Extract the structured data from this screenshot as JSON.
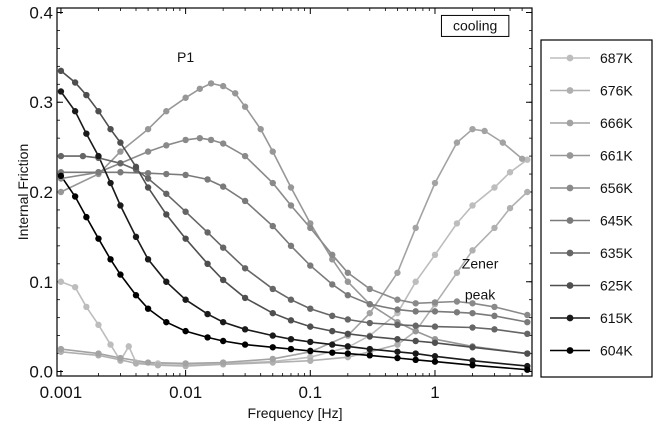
{
  "chart_data": {
    "type": "line",
    "title": "",
    "xlabel": "Frequency [Hz]",
    "ylabel": "Internal Friction",
    "x_scale": "log",
    "xlim": [
      0.00093,
      6.0
    ],
    "ylim": [
      -0.005,
      0.405
    ],
    "x_ticks": [
      {
        "value": 0.001,
        "label": "0.001"
      },
      {
        "value": 0.01,
        "label": "0.01"
      },
      {
        "value": 0.1,
        "label": "0.1"
      },
      {
        "value": 1,
        "label": "1"
      }
    ],
    "y_ticks": [
      {
        "value": 0.0,
        "label": "0.0"
      },
      {
        "value": 0.1,
        "label": "0.1"
      },
      {
        "value": 0.2,
        "label": "0.2"
      },
      {
        "value": 0.3,
        "label": "0.3"
      },
      {
        "value": 0.4,
        "label": "0.4"
      }
    ],
    "grid": false,
    "legend_position": "right-outside",
    "annotations": [
      {
        "text": "P1",
        "x": 0.01,
        "y": 0.345
      },
      {
        "text": "cooling",
        "x": 2.1,
        "y": 0.38,
        "boxed": true
      },
      {
        "text": "Zener",
        "x": 2.3,
        "y": 0.115
      },
      {
        "text": "peak",
        "x": 2.3,
        "y": 0.08
      }
    ],
    "series": [
      {
        "name": "687K",
        "color": "#bdbdbd",
        "points": [
          [
            0.001,
            0.1
          ],
          [
            0.0013,
            0.094
          ],
          [
            0.0016,
            0.072
          ],
          [
            0.002,
            0.052
          ],
          [
            0.0025,
            0.03
          ],
          [
            0.003,
            0.012
          ],
          [
            0.0035,
            0.028
          ],
          [
            0.004,
            0.01
          ],
          [
            0.006,
            0.009
          ],
          [
            0.01,
            0.008
          ],
          [
            0.02,
            0.009
          ],
          [
            0.05,
            0.011
          ],
          [
            0.1,
            0.016
          ],
          [
            0.2,
            0.027
          ],
          [
            0.3,
            0.04
          ],
          [
            0.5,
            0.065
          ],
          [
            0.7,
            0.1
          ],
          [
            1.0,
            0.13
          ],
          [
            1.5,
            0.165
          ],
          [
            2.0,
            0.185
          ],
          [
            3.0,
            0.205
          ],
          [
            4.0,
            0.222
          ],
          [
            5.5,
            0.236
          ]
        ]
      },
      {
        "name": "676K",
        "color": "#b0b0b0",
        "points": [
          [
            0.001,
            0.022
          ],
          [
            0.002,
            0.018
          ],
          [
            0.003,
            0.013
          ],
          [
            0.004,
            0.009
          ],
          [
            0.006,
            0.007
          ],
          [
            0.01,
            0.006
          ],
          [
            0.02,
            0.008
          ],
          [
            0.05,
            0.01
          ],
          [
            0.1,
            0.012
          ],
          [
            0.2,
            0.016
          ],
          [
            0.3,
            0.022
          ],
          [
            0.5,
            0.03
          ],
          [
            0.7,
            0.045
          ],
          [
            1.0,
            0.075
          ],
          [
            1.5,
            0.11
          ],
          [
            2.0,
            0.135
          ],
          [
            3.0,
            0.16
          ],
          [
            4.0,
            0.182
          ],
          [
            5.5,
            0.2
          ]
        ]
      },
      {
        "name": "666K",
        "color": "#a3a3a3",
        "points": [
          [
            0.001,
            0.025
          ],
          [
            0.002,
            0.02
          ],
          [
            0.003,
            0.015
          ],
          [
            0.005,
            0.01
          ],
          [
            0.01,
            0.009
          ],
          [
            0.02,
            0.01
          ],
          [
            0.05,
            0.014
          ],
          [
            0.1,
            0.022
          ],
          [
            0.2,
            0.04
          ],
          [
            0.3,
            0.065
          ],
          [
            0.5,
            0.11
          ],
          [
            0.7,
            0.16
          ],
          [
            1.0,
            0.21
          ],
          [
            1.5,
            0.255
          ],
          [
            2.0,
            0.27
          ],
          [
            2.5,
            0.268
          ],
          [
            3.5,
            0.255
          ],
          [
            5.0,
            0.237
          ]
        ]
      },
      {
        "name": "661K",
        "color": "#979797",
        "points": [
          [
            0.001,
            0.2
          ],
          [
            0.002,
            0.22
          ],
          [
            0.003,
            0.245
          ],
          [
            0.005,
            0.27
          ],
          [
            0.007,
            0.29
          ],
          [
            0.01,
            0.305
          ],
          [
            0.013,
            0.315
          ],
          [
            0.016,
            0.321
          ],
          [
            0.02,
            0.318
          ],
          [
            0.025,
            0.31
          ],
          [
            0.03,
            0.295
          ],
          [
            0.04,
            0.27
          ],
          [
            0.05,
            0.245
          ],
          [
            0.07,
            0.205
          ],
          [
            0.1,
            0.165
          ],
          [
            0.15,
            0.125
          ],
          [
            0.2,
            0.1
          ],
          [
            0.3,
            0.075
          ],
          [
            0.5,
            0.055
          ],
          [
            0.7,
            0.045
          ],
          [
            1.0,
            0.036
          ],
          [
            2.0,
            0.028
          ],
          [
            5.5,
            0.02
          ]
        ]
      },
      {
        "name": "656K",
        "color": "#8a8a8a",
        "points": [
          [
            0.001,
            0.215
          ],
          [
            0.002,
            0.222
          ],
          [
            0.003,
            0.232
          ],
          [
            0.005,
            0.245
          ],
          [
            0.007,
            0.252
          ],
          [
            0.01,
            0.258
          ],
          [
            0.013,
            0.26
          ],
          [
            0.016,
            0.258
          ],
          [
            0.02,
            0.254
          ],
          [
            0.03,
            0.24
          ],
          [
            0.05,
            0.21
          ],
          [
            0.07,
            0.185
          ],
          [
            0.1,
            0.16
          ],
          [
            0.15,
            0.13
          ],
          [
            0.2,
            0.11
          ],
          [
            0.3,
            0.092
          ],
          [
            0.5,
            0.08
          ],
          [
            0.7,
            0.076
          ],
          [
            1.0,
            0.077
          ],
          [
            1.5,
            0.078
          ],
          [
            2.0,
            0.076
          ],
          [
            3.0,
            0.072
          ],
          [
            5.5,
            0.063
          ]
        ]
      },
      {
        "name": "645K",
        "color": "#7a7a7a",
        "points": [
          [
            0.001,
            0.222
          ],
          [
            0.002,
            0.222
          ],
          [
            0.003,
            0.222
          ],
          [
            0.005,
            0.221
          ],
          [
            0.007,
            0.22
          ],
          [
            0.01,
            0.219
          ],
          [
            0.015,
            0.214
          ],
          [
            0.02,
            0.206
          ],
          [
            0.03,
            0.19
          ],
          [
            0.05,
            0.162
          ],
          [
            0.07,
            0.14
          ],
          [
            0.1,
            0.118
          ],
          [
            0.15,
            0.097
          ],
          [
            0.2,
            0.085
          ],
          [
            0.3,
            0.075
          ],
          [
            0.5,
            0.069
          ],
          [
            0.7,
            0.067
          ],
          [
            1.0,
            0.067
          ],
          [
            1.5,
            0.066
          ],
          [
            2.0,
            0.065
          ],
          [
            3.0,
            0.062
          ],
          [
            5.5,
            0.055
          ]
        ]
      },
      {
        "name": "635K",
        "color": "#666666",
        "points": [
          [
            0.001,
            0.24
          ],
          [
            0.0015,
            0.24
          ],
          [
            0.002,
            0.238
          ],
          [
            0.003,
            0.232
          ],
          [
            0.004,
            0.225
          ],
          [
            0.005,
            0.215
          ],
          [
            0.007,
            0.198
          ],
          [
            0.01,
            0.178
          ],
          [
            0.015,
            0.155
          ],
          [
            0.02,
            0.138
          ],
          [
            0.03,
            0.115
          ],
          [
            0.05,
            0.092
          ],
          [
            0.07,
            0.08
          ],
          [
            0.1,
            0.07
          ],
          [
            0.15,
            0.062
          ],
          [
            0.2,
            0.058
          ],
          [
            0.3,
            0.054
          ],
          [
            0.5,
            0.052
          ],
          [
            0.7,
            0.051
          ],
          [
            1.0,
            0.05
          ],
          [
            2.0,
            0.049
          ],
          [
            3.0,
            0.047
          ],
          [
            5.5,
            0.042
          ]
        ]
      },
      {
        "name": "625K",
        "color": "#4f4f4f",
        "points": [
          [
            0.001,
            0.335
          ],
          [
            0.0013,
            0.322
          ],
          [
            0.0016,
            0.308
          ],
          [
            0.002,
            0.29
          ],
          [
            0.0025,
            0.27
          ],
          [
            0.003,
            0.255
          ],
          [
            0.004,
            0.228
          ],
          [
            0.005,
            0.205
          ],
          [
            0.007,
            0.175
          ],
          [
            0.01,
            0.148
          ],
          [
            0.015,
            0.12
          ],
          [
            0.02,
            0.102
          ],
          [
            0.03,
            0.082
          ],
          [
            0.05,
            0.065
          ],
          [
            0.07,
            0.057
          ],
          [
            0.1,
            0.05
          ],
          [
            0.15,
            0.045
          ],
          [
            0.2,
            0.042
          ],
          [
            0.3,
            0.039
          ],
          [
            0.5,
            0.036
          ],
          [
            0.7,
            0.034
          ],
          [
            1.0,
            0.032
          ],
          [
            2.0,
            0.027
          ],
          [
            5.5,
            0.02
          ]
        ]
      },
      {
        "name": "615K",
        "color": "#1a1a1a",
        "points": [
          [
            0.001,
            0.312
          ],
          [
            0.0013,
            0.29
          ],
          [
            0.0016,
            0.265
          ],
          [
            0.002,
            0.24
          ],
          [
            0.0025,
            0.21
          ],
          [
            0.003,
            0.185
          ],
          [
            0.004,
            0.15
          ],
          [
            0.005,
            0.125
          ],
          [
            0.007,
            0.1
          ],
          [
            0.01,
            0.08
          ],
          [
            0.015,
            0.064
          ],
          [
            0.02,
            0.055
          ],
          [
            0.03,
            0.047
          ],
          [
            0.05,
            0.04
          ],
          [
            0.07,
            0.036
          ],
          [
            0.1,
            0.033
          ],
          [
            0.15,
            0.03
          ],
          [
            0.2,
            0.028
          ],
          [
            0.3,
            0.025
          ],
          [
            0.5,
            0.022
          ],
          [
            0.7,
            0.02
          ],
          [
            1.0,
            0.017
          ],
          [
            2.0,
            0.012
          ],
          [
            5.5,
            0.006
          ]
        ]
      },
      {
        "name": "604K",
        "color": "#000000",
        "points": [
          [
            0.001,
            0.218
          ],
          [
            0.0013,
            0.195
          ],
          [
            0.0016,
            0.172
          ],
          [
            0.002,
            0.148
          ],
          [
            0.0025,
            0.125
          ],
          [
            0.003,
            0.108
          ],
          [
            0.004,
            0.085
          ],
          [
            0.005,
            0.07
          ],
          [
            0.007,
            0.055
          ],
          [
            0.01,
            0.045
          ],
          [
            0.015,
            0.038
          ],
          [
            0.02,
            0.034
          ],
          [
            0.03,
            0.03
          ],
          [
            0.05,
            0.027
          ],
          [
            0.07,
            0.025
          ],
          [
            0.1,
            0.023
          ],
          [
            0.15,
            0.021
          ],
          [
            0.2,
            0.02
          ],
          [
            0.3,
            0.018
          ],
          [
            0.5,
            0.015
          ],
          [
            0.7,
            0.013
          ],
          [
            1.0,
            0.011
          ],
          [
            2.0,
            0.007
          ],
          [
            5.5,
            0.002
          ]
        ]
      }
    ]
  }
}
